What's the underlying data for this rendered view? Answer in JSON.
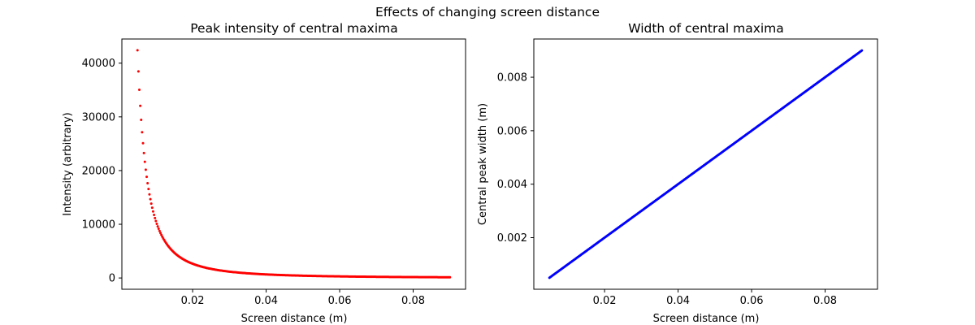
{
  "figure": {
    "suptitle": "Effects of changing screen distance"
  },
  "chart_data": [
    {
      "type": "scatter",
      "title": "Peak intensity of central maxima",
      "xlabel": "Screen distance (m)",
      "ylabel": "Intensity (arbitrary)",
      "xlim": [
        0.00075,
        0.09425
      ],
      "ylim": [
        -2100,
        44500
      ],
      "xticks": [
        0.02,
        0.04,
        0.06,
        0.08
      ],
      "xtick_labels": [
        "0.02",
        "0.04",
        "0.06",
        "0.08"
      ],
      "yticks": [
        0,
        10000,
        20000,
        30000,
        40000
      ],
      "ytick_labels": [
        "0",
        "10000",
        "20000",
        "30000",
        "40000"
      ],
      "grid": false,
      "marker_color": "#ff0000",
      "series": [
        {
          "relation": "y = 1.06 / x^2",
          "x_start": 0.005,
          "x_end": 0.09,
          "x_step": 0.00025,
          "x": [
            0.005,
            0.006,
            0.007,
            0.008,
            0.01,
            0.012,
            0.015,
            0.02,
            0.025,
            0.03,
            0.04,
            0.05,
            0.06,
            0.07,
            0.08,
            0.09
          ],
          "y": [
            42400,
            29444,
            21633,
            16563,
            10600,
            7361,
            4711,
            2650,
            1696,
            1178,
            663,
            424,
            294,
            216,
            166,
            131
          ]
        }
      ]
    },
    {
      "type": "scatter",
      "title": "Width of central maxima",
      "xlabel": "Screen distance (m)",
      "ylabel": "Central peak width (m)",
      "xlim": [
        0.00075,
        0.09425
      ],
      "ylim": [
        7e-05,
        0.00943
      ],
      "xticks": [
        0.02,
        0.04,
        0.06,
        0.08
      ],
      "xtick_labels": [
        "0.02",
        "0.04",
        "0.06",
        "0.08"
      ],
      "yticks": [
        0.002,
        0.004,
        0.006,
        0.008
      ],
      "ytick_labels": [
        "0.002",
        "0.004",
        "0.006",
        "0.008"
      ],
      "grid": false,
      "marker_color": "#0000ff",
      "series": [
        {
          "relation": "y = 0.1 * x",
          "x_start": 0.005,
          "x_end": 0.09,
          "x_step": 0.00025,
          "x": [
            0.005,
            0.01,
            0.02,
            0.03,
            0.04,
            0.05,
            0.06,
            0.07,
            0.08,
            0.09
          ],
          "y": [
            0.0005,
            0.001,
            0.002,
            0.003,
            0.004,
            0.005,
            0.006,
            0.007,
            0.008,
            0.009
          ]
        }
      ]
    }
  ]
}
